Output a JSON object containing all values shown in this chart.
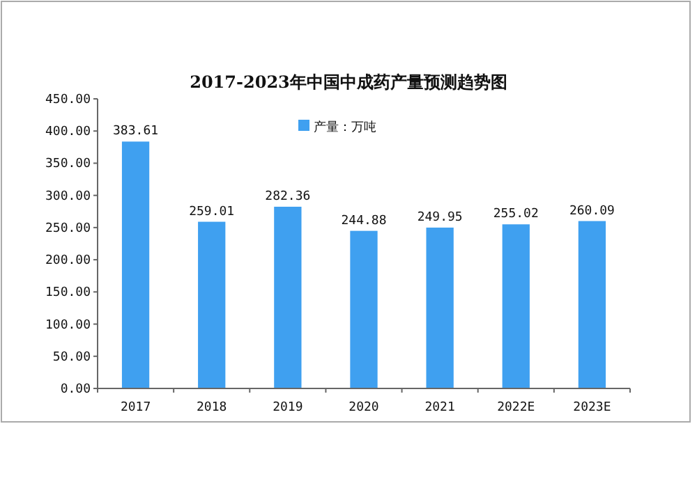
{
  "chart_data": {
    "type": "bar",
    "title": "2017-2023年中国中成药产量预测趋势图",
    "categories": [
      "2017",
      "2018",
      "2019",
      "2020",
      "2021",
      "2022E",
      "2023E"
    ],
    "series": [
      {
        "name": "产量：万吨",
        "color": "#3fa0f0",
        "values": [
          383.61,
          259.01,
          282.36,
          244.88,
          249.95,
          255.02,
          260.09
        ]
      }
    ],
    "ylim": [
      0,
      450
    ],
    "yticks": [
      {
        "value": 0,
        "label": "0.00"
      },
      {
        "value": 50,
        "label": "50.00"
      },
      {
        "value": 100,
        "label": "100.00"
      },
      {
        "value": 150,
        "label": "150.00"
      },
      {
        "value": 200,
        "label": "200.00"
      },
      {
        "value": 250,
        "label": "250.00"
      },
      {
        "value": 300,
        "label": "300.00"
      },
      {
        "value": 350,
        "label": "350.00"
      },
      {
        "value": 400,
        "label": "400.00"
      },
      {
        "value": 450,
        "label": "450.00"
      }
    ],
    "data_labels": true,
    "legend": "top",
    "grid": false
  }
}
